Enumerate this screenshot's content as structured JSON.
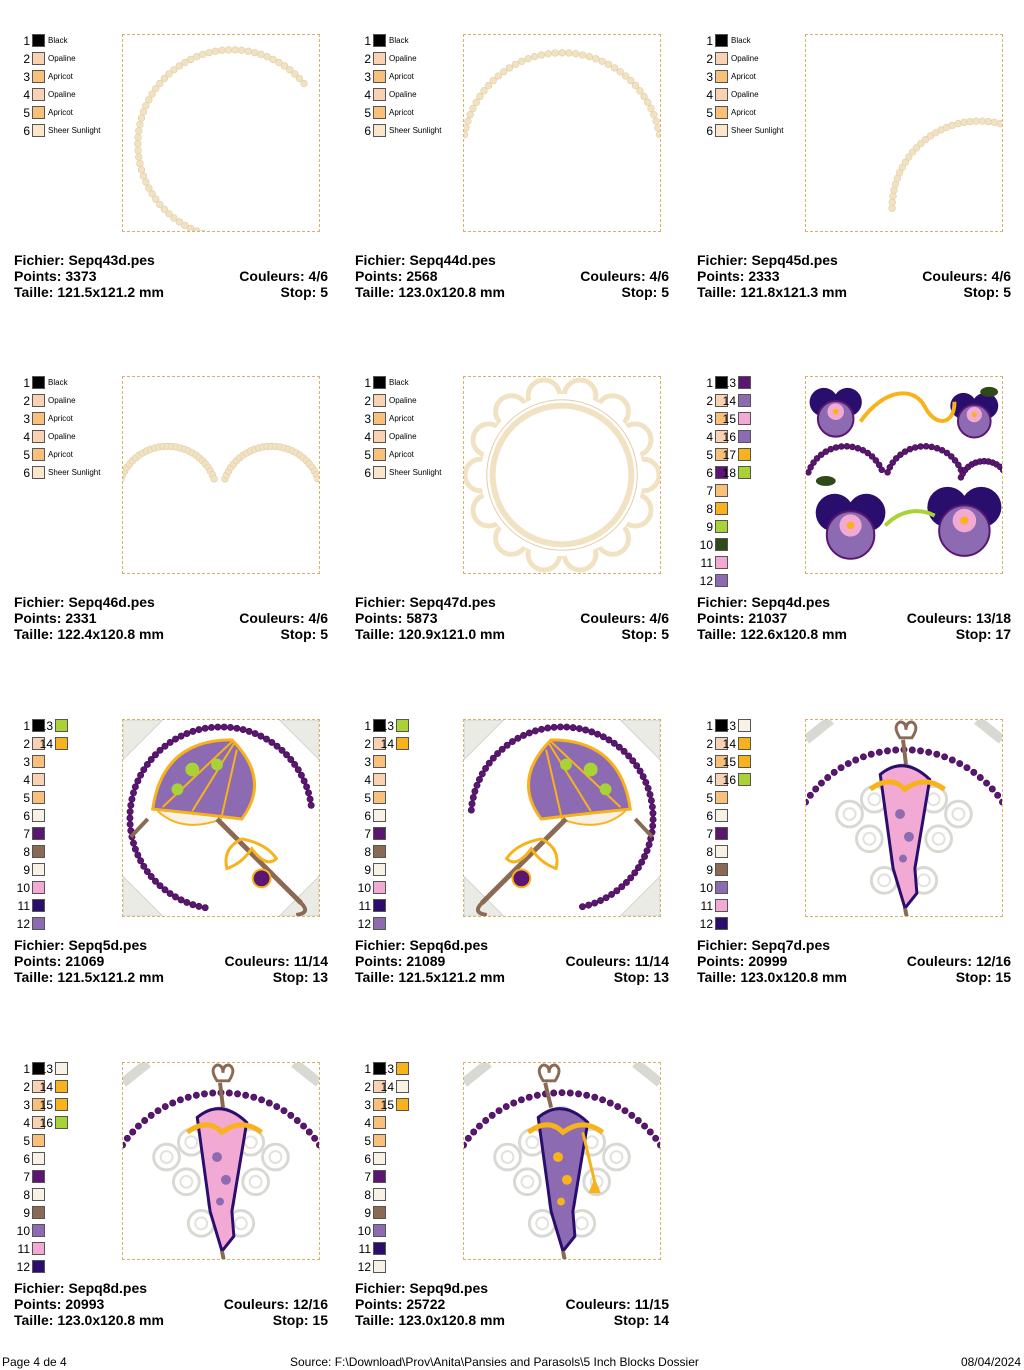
{
  "colors": {
    "black": "#000000",
    "opaline": "#f9d2b4",
    "apricot": "#f9c07b",
    "sheer_sunlight": "#fbe6cc",
    "purple": "#5a1670",
    "lavender": "#8c6bb3",
    "pink": "#f2a9d4",
    "lime": "#a9d236",
    "green": "#2e4a18",
    "gold": "#f7b21c",
    "cream": "#f8f2e6",
    "brown": "#8b6a55",
    "navy": "#2a0e6e",
    "thread": "#f1e2c3",
    "thread_dark": "#e2cda2"
  },
  "labels": {
    "file": "Fichier:",
    "points": "Points:",
    "colors": "Couleurs:",
    "size": "Taille:",
    "stop": "Stop:"
  },
  "designs": [
    {
      "file": "Sepq43d.pes",
      "points": "3373",
      "colors_count": "4/6",
      "size": "121.5x121.2 mm",
      "stop": "5",
      "palette": [
        {
          "n": "1",
          "name": "Black",
          "color": "#000000"
        },
        {
          "n": "2",
          "name": "Opaline",
          "color": "#f9d2b4"
        },
        {
          "n": "3",
          "name": "Apricot",
          "color": "#f9c07b"
        },
        {
          "n": "4",
          "name": "Opaline",
          "color": "#f9d2b4"
        },
        {
          "n": "5",
          "name": "Apricot",
          "color": "#f9c07b"
        },
        {
          "n": "6",
          "name": "Sheer Sunlight",
          "color": "#fbe6cc"
        }
      ],
      "palette2": [],
      "art": "arc-left"
    },
    {
      "file": "Sepq44d.pes",
      "points": "2568",
      "colors_count": "4/6",
      "size": "123.0x120.8 mm",
      "stop": "5",
      "palette": [
        {
          "n": "1",
          "name": "Black",
          "color": "#000000"
        },
        {
          "n": "2",
          "name": "Opaline",
          "color": "#f9d2b4"
        },
        {
          "n": "3",
          "name": "Apricot",
          "color": "#f9c07b"
        },
        {
          "n": "4",
          "name": "Opaline",
          "color": "#f9d2b4"
        },
        {
          "n": "5",
          "name": "Apricot",
          "color": "#f9c07b"
        },
        {
          "n": "6",
          "name": "Sheer Sunlight",
          "color": "#fbe6cc"
        }
      ],
      "palette2": [],
      "art": "arc-top"
    },
    {
      "file": "Sepq45d.pes",
      "points": "2333",
      "colors_count": "4/6",
      "size": "121.8x121.3 mm",
      "stop": "5",
      "palette": [
        {
          "n": "1",
          "name": "Black",
          "color": "#000000"
        },
        {
          "n": "2",
          "name": "Opaline",
          "color": "#f9d2b4"
        },
        {
          "n": "3",
          "name": "Apricot",
          "color": "#f9c07b"
        },
        {
          "n": "4",
          "name": "Opaline",
          "color": "#f9d2b4"
        },
        {
          "n": "5",
          "name": "Apricot",
          "color": "#f9c07b"
        },
        {
          "n": "6",
          "name": "Sheer Sunlight",
          "color": "#fbe6cc"
        }
      ],
      "palette2": [],
      "art": "arc-corner"
    },
    {
      "file": "Sepq46d.pes",
      "points": "2331",
      "colors_count": "4/6",
      "size": "122.4x120.8 mm",
      "stop": "5",
      "palette": [
        {
          "n": "1",
          "name": "Black",
          "color": "#000000"
        },
        {
          "n": "2",
          "name": "Opaline",
          "color": "#f9d2b4"
        },
        {
          "n": "3",
          "name": "Apricot",
          "color": "#f9c07b"
        },
        {
          "n": "4",
          "name": "Opaline",
          "color": "#f9d2b4"
        },
        {
          "n": "5",
          "name": "Apricot",
          "color": "#f9c07b"
        },
        {
          "n": "6",
          "name": "Sheer Sunlight",
          "color": "#fbe6cc"
        }
      ],
      "palette2": [],
      "art": "scallop"
    },
    {
      "file": "Sepq47d.pes",
      "points": "5873",
      "colors_count": "4/6",
      "size": "120.9x121.0 mm",
      "stop": "5",
      "palette": [
        {
          "n": "1",
          "name": "Black",
          "color": "#000000"
        },
        {
          "n": "2",
          "name": "Opaline",
          "color": "#f9d2b4"
        },
        {
          "n": "3",
          "name": "Apricot",
          "color": "#f9c07b"
        },
        {
          "n": "4",
          "name": "Opaline",
          "color": "#f9d2b4"
        },
        {
          "n": "5",
          "name": "Apricot",
          "color": "#f9c07b"
        },
        {
          "n": "6",
          "name": "Sheer Sunlight",
          "color": "#fbe6cc"
        }
      ],
      "palette2": [],
      "art": "frame"
    },
    {
      "file": "Sepq4d.pes",
      "points": "21037",
      "colors_count": "13/18",
      "size": "122.6x120.8 mm",
      "stop": "17",
      "palette": [
        {
          "n": "1",
          "name": "",
          "color": "#000000"
        },
        {
          "n": "2",
          "name": "",
          "color": "#f9d2b4"
        },
        {
          "n": "3",
          "name": "",
          "color": "#f9c07b"
        },
        {
          "n": "4",
          "name": "",
          "color": "#f9d2b4"
        },
        {
          "n": "5",
          "name": "",
          "color": "#f9c07b"
        },
        {
          "n": "6",
          "name": "",
          "color": "#5a1670"
        },
        {
          "n": "7",
          "name": "",
          "color": "#f9c07b"
        },
        {
          "n": "8",
          "name": "",
          "color": "#f7b21c"
        },
        {
          "n": "9",
          "name": "",
          "color": "#a9d236"
        },
        {
          "n": "10",
          "name": "",
          "color": "#2e4a18"
        },
        {
          "n": "11",
          "name": "",
          "color": "#f2a9d4"
        },
        {
          "n": "12",
          "name": "",
          "color": "#8c6bb3"
        }
      ],
      "palette2": [
        {
          "n": "13",
          "color": "#5a1670"
        },
        {
          "n": "14",
          "color": "#8c6bb3"
        },
        {
          "n": "15",
          "color": "#f2a9d4"
        },
        {
          "n": "16",
          "color": "#8c6bb3"
        },
        {
          "n": "17",
          "color": "#f7b21c"
        },
        {
          "n": "18",
          "color": "#a9d236"
        }
      ],
      "art": "pansies"
    },
    {
      "file": "Sepq5d.pes",
      "points": "21069",
      "colors_count": "11/14",
      "size": "121.5x121.2 mm",
      "stop": "13",
      "palette": [
        {
          "n": "1",
          "name": "",
          "color": "#000000"
        },
        {
          "n": "2",
          "name": "",
          "color": "#f9d2b4"
        },
        {
          "n": "3",
          "name": "",
          "color": "#f9c07b"
        },
        {
          "n": "4",
          "name": "",
          "color": "#f9d2b4"
        },
        {
          "n": "5",
          "name": "",
          "color": "#f9c07b"
        },
        {
          "n": "6",
          "name": "",
          "color": "#f8f2e6"
        },
        {
          "n": "7",
          "name": "",
          "color": "#5a1670"
        },
        {
          "n": "8",
          "name": "",
          "color": "#8b6a55"
        },
        {
          "n": "9",
          "name": "",
          "color": "#f8f2e6"
        },
        {
          "n": "10",
          "name": "",
          "color": "#f2a9d4"
        },
        {
          "n": "11",
          "name": "",
          "color": "#2a0e6e"
        },
        {
          "n": "12",
          "name": "",
          "color": "#8c6bb3"
        }
      ],
      "palette2": [
        {
          "n": "13",
          "color": "#a9d236"
        },
        {
          "n": "14",
          "color": "#f7b21c"
        }
      ],
      "art": "umbrella"
    },
    {
      "file": "Sepq6d.pes",
      "points": "21089",
      "colors_count": "11/14",
      "size": "121.5x121.2 mm",
      "stop": "13",
      "palette": [
        {
          "n": "1",
          "name": "",
          "color": "#000000"
        },
        {
          "n": "2",
          "name": "",
          "color": "#f9d2b4"
        },
        {
          "n": "3",
          "name": "",
          "color": "#f9c07b"
        },
        {
          "n": "4",
          "name": "",
          "color": "#f9d2b4"
        },
        {
          "n": "5",
          "name": "",
          "color": "#f9c07b"
        },
        {
          "n": "6",
          "name": "",
          "color": "#f8f2e6"
        },
        {
          "n": "7",
          "name": "",
          "color": "#5a1670"
        },
        {
          "n": "8",
          "name": "",
          "color": "#8b6a55"
        },
        {
          "n": "9",
          "name": "",
          "color": "#f8f2e6"
        },
        {
          "n": "10",
          "name": "",
          "color": "#f2a9d4"
        },
        {
          "n": "11",
          "name": "",
          "color": "#2a0e6e"
        },
        {
          "n": "12",
          "name": "",
          "color": "#8c6bb3"
        }
      ],
      "palette2": [
        {
          "n": "13",
          "color": "#a9d236"
        },
        {
          "n": "14",
          "color": "#f7b21c"
        }
      ],
      "art": "umbrella-flip"
    },
    {
      "file": "Sepq7d.pes",
      "points": "20999",
      "colors_count": "12/16",
      "size": "123.0x120.8 mm",
      "stop": "15",
      "palette": [
        {
          "n": "1",
          "name": "",
          "color": "#000000"
        },
        {
          "n": "2",
          "name": "",
          "color": "#f9d2b4"
        },
        {
          "n": "3",
          "name": "",
          "color": "#f9c07b"
        },
        {
          "n": "4",
          "name": "",
          "color": "#f9d2b4"
        },
        {
          "n": "5",
          "name": "",
          "color": "#f9c07b"
        },
        {
          "n": "6",
          "name": "",
          "color": "#f8f2e6"
        },
        {
          "n": "7",
          "name": "",
          "color": "#5a1670"
        },
        {
          "n": "8",
          "name": "",
          "color": "#f8f2e6"
        },
        {
          "n": "9",
          "name": "",
          "color": "#8b6a55"
        },
        {
          "n": "10",
          "name": "",
          "color": "#8c6bb3"
        },
        {
          "n": "11",
          "name": "",
          "color": "#f2a9d4"
        },
        {
          "n": "12",
          "name": "",
          "color": "#2a0e6e"
        }
      ],
      "palette2": [
        {
          "n": "13",
          "color": "#f8f2e6"
        },
        {
          "n": "14",
          "color": "#f7b21c"
        },
        {
          "n": "15",
          "color": "#f7b21c"
        },
        {
          "n": "16",
          "color": "#a9d236"
        }
      ],
      "art": "parasol-closed"
    },
    {
      "file": "Sepq8d.pes",
      "points": "20993",
      "colors_count": "12/16",
      "size": "123.0x120.8 mm",
      "stop": "15",
      "palette": [
        {
          "n": "1",
          "name": "",
          "color": "#000000"
        },
        {
          "n": "2",
          "name": "",
          "color": "#f9d2b4"
        },
        {
          "n": "3",
          "name": "",
          "color": "#f9c07b"
        },
        {
          "n": "4",
          "name": "",
          "color": "#f9d2b4"
        },
        {
          "n": "5",
          "name": "",
          "color": "#f9c07b"
        },
        {
          "n": "6",
          "name": "",
          "color": "#f8f2e6"
        },
        {
          "n": "7",
          "name": "",
          "color": "#5a1670"
        },
        {
          "n": "8",
          "name": "",
          "color": "#f8f2e6"
        },
        {
          "n": "9",
          "name": "",
          "color": "#8b6a55"
        },
        {
          "n": "10",
          "name": "",
          "color": "#8c6bb3"
        },
        {
          "n": "11",
          "name": "",
          "color": "#f2a9d4"
        },
        {
          "n": "12",
          "name": "",
          "color": "#2a0e6e"
        }
      ],
      "palette2": [
        {
          "n": "13",
          "color": "#f8f2e6"
        },
        {
          "n": "14",
          "color": "#f7b21c"
        },
        {
          "n": "15",
          "color": "#f7b21c"
        },
        {
          "n": "16",
          "color": "#a9d236"
        }
      ],
      "art": "parasol-closed2"
    },
    {
      "file": "Sepq9d.pes",
      "points": "25722",
      "colors_count": "11/15",
      "size": "123.0x120.8 mm",
      "stop": "14",
      "palette": [
        {
          "n": "1",
          "name": "",
          "color": "#000000"
        },
        {
          "n": "2",
          "name": "",
          "color": "#f9d2b4"
        },
        {
          "n": "3",
          "name": "",
          "color": "#f9c07b"
        },
        {
          "n": "4",
          "name": "",
          "color": "#f9c07b"
        },
        {
          "n": "5",
          "name": "",
          "color": "#f9c07b"
        },
        {
          "n": "6",
          "name": "",
          "color": "#f8f2e6"
        },
        {
          "n": "7",
          "name": "",
          "color": "#5a1670"
        },
        {
          "n": "8",
          "name": "",
          "color": "#f8f2e6"
        },
        {
          "n": "9",
          "name": "",
          "color": "#8b6a55"
        },
        {
          "n": "10",
          "name": "",
          "color": "#8c6bb3"
        },
        {
          "n": "11",
          "name": "",
          "color": "#2a0e6e"
        },
        {
          "n": "12",
          "name": "",
          "color": "#f8f2e6"
        }
      ],
      "palette2": [
        {
          "n": "13",
          "color": "#f7b21c"
        },
        {
          "n": "14",
          "color": "#f8f2e6"
        },
        {
          "n": "15",
          "color": "#f7b21c"
        }
      ],
      "art": "parasol-tassel"
    }
  ],
  "footer": {
    "page": "Page 4 de 4",
    "source": "Source: F:\\Download\\Prov\\Anita\\Pansies and Parasols\\5 Inch Blocks Dossier",
    "date": "08/04/2024"
  }
}
